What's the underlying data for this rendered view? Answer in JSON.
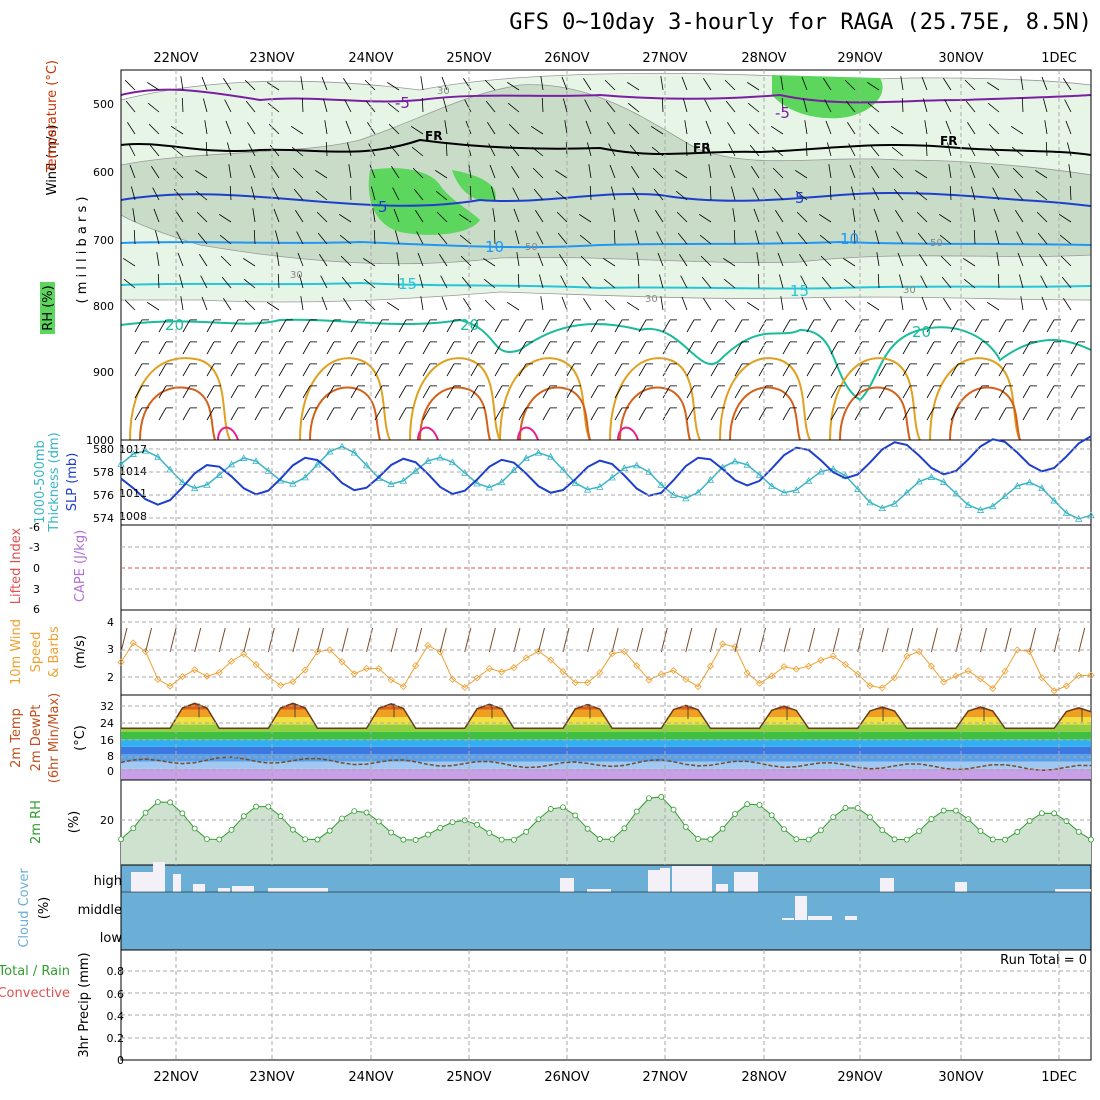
{
  "title": "GFS 0~10day 3-hourly for RAGA (25.75E, 8.5N)",
  "dates": [
    "22NOV",
    "23NOV",
    "24NOV",
    "25NOV",
    "26NOV",
    "27NOV",
    "28NOV",
    "29NOV",
    "30NOV",
    "1DEC"
  ],
  "colors": {
    "temp": "#7b1fa2",
    "freeze": "#000000",
    "rh_green": "#5cd65c",
    "rh_light": "#e6f5e6",
    "rh_mid": "#c8dcc8",
    "thick": "#39b5c6",
    "slp": "#1e3fcc",
    "wind10": "#f0a030",
    "rh2m": "#2e9e2e",
    "cloud": "#6baed6",
    "cape_line": "#e05050"
  },
  "panels": {
    "upper": {
      "ylabel_left_1": "Wind (m/s)",
      "ylabel_left_2": "Temperature (°C)",
      "ylabel_units": "( m i l l i b a r s )",
      "rh_box": "RH (%)",
      "pressure_ticks": [
        "500",
        "600",
        "700",
        "800",
        "900",
        "1000"
      ],
      "contour_labels": {
        "t5a": "-5",
        "t5b": "-5",
        "fr1": "FR",
        "fr2": "FR",
        "fr3": "FR",
        "t5c": "5",
        "t5d": "5",
        "t10a": "10",
        "t10b": "10",
        "t15a": "15",
        "t15b": "15",
        "t20a": "20",
        "t20b": "20",
        "t20c": "20",
        "r30a": "30",
        "r30b": "30",
        "r30c": "30",
        "r30d": "30",
        "r50a": "50",
        "r50b": "50"
      }
    },
    "thick_slp": {
      "label_a": "1000-500mb",
      "label_b": "Thickness (dm)",
      "label_c": "SLP (mb)",
      "left_ticks": [
        "580",
        "578",
        "576",
        "574"
      ],
      "right_ticks": [
        "1017",
        "1014",
        "1011",
        "1008"
      ]
    },
    "cape": {
      "label_a": "Lifted Index",
      "label_b": "CAPE (J/kg)",
      "ticks": [
        "-6",
        "-3",
        "0",
        "3",
        "6"
      ]
    },
    "wind10": {
      "label_a": "10m Wind",
      "label_b": "Speed",
      "label_c": "& Barbs",
      "units": "(m/s)",
      "ticks": [
        "4",
        "3",
        "2"
      ]
    },
    "temp2m": {
      "label_a": "2m Temp",
      "label_b": "2m DewPt",
      "label_c": "(6hr Min/Max)",
      "units": "(°C)",
      "ticks": [
        "32",
        "24",
        "16",
        "8",
        "0"
      ]
    },
    "rh2m": {
      "label": "2m RH",
      "units": "(%)",
      "ticks": [
        "20"
      ]
    },
    "cloud": {
      "label": "Cloud Cover",
      "units": "(%)",
      "levels": [
        "high",
        "middle",
        "low"
      ]
    },
    "precip": {
      "label_a": "Total / Rain",
      "label_b": "Convective",
      "label_c": "3hr Precip (mm)",
      "run_total": "Run Total = 0",
      "ticks": [
        "0.8",
        "0.6",
        "0.4",
        "0.2",
        "0"
      ]
    }
  },
  "chart_data": [
    {
      "type": "line",
      "title": "1000-500mb Thickness (dm)",
      "x": [
        "22NOV",
        "23NOV",
        "24NOV",
        "25NOV",
        "26NOV",
        "27NOV",
        "28NOV",
        "29NOV",
        "30NOV",
        "1DEC"
      ],
      "series": [
        {
          "name": "Thickness (dm)",
          "values": [
            578.6,
            577.4,
            578.8,
            577.6,
            578.2,
            576.5,
            577.6,
            575.8,
            575.6,
            574.6
          ]
        },
        {
          "name": "SLP (mb)",
          "values": [
            1010.5,
            1012.5,
            1013.5,
            1012.8,
            1013.0,
            1012.5,
            1014.5,
            1015.5,
            1016.0,
            1016.5
          ]
        }
      ]
    },
    {
      "type": "line",
      "title": "10m Wind Speed (m/s)",
      "x": [
        "22NOV",
        "23NOV",
        "24NOV",
        "25NOV",
        "26NOV",
        "27NOV",
        "28NOV",
        "29NOV",
        "30NOV",
        "1DEC"
      ],
      "series": [
        {
          "name": "10m Wind Speed",
          "values": [
            2.1,
            2.0,
            2.2,
            2.0,
            2.2,
            2.0,
            2.2,
            2.0,
            2.0,
            1.9
          ]
        }
      ],
      "ylim": [
        1.5,
        4.3
      ]
    },
    {
      "type": "area",
      "title": "2m Temp (°C)",
      "x": [
        "22NOV",
        "23NOV",
        "24NOV",
        "25NOV",
        "26NOV",
        "27NOV",
        "28NOV",
        "29NOV",
        "30NOV",
        "1DEC"
      ],
      "series": [
        {
          "name": "2m Temp max",
          "values": [
            33.5,
            33.5,
            33.5,
            33,
            33,
            32.5,
            32,
            31.5,
            31.5,
            31
          ]
        },
        {
          "name": "2m DewPt",
          "values": [
            1.5,
            3,
            2,
            1,
            0,
            1.5,
            0.5,
            -0.5,
            -1,
            -1.5
          ]
        }
      ]
    },
    {
      "type": "area",
      "title": "2m RH (%)",
      "x": [
        "22NOV",
        "23NOV",
        "24NOV",
        "25NOV",
        "26NOV",
        "27NOV",
        "28NOV",
        "29NOV",
        "30NOV",
        "1DEC"
      ],
      "series": [
        {
          "name": "2m RH",
          "values": [
            30,
            28,
            27,
            22,
            27,
            31,
            28,
            27,
            26,
            25
          ]
        }
      ]
    },
    {
      "type": "bar",
      "title": "3hr Precip (mm)",
      "x": [
        "22NOV",
        "23NOV",
        "24NOV",
        "25NOV",
        "26NOV",
        "27NOV",
        "28NOV",
        "29NOV",
        "30NOV",
        "1DEC"
      ],
      "series": [
        {
          "name": "Total / Rain",
          "values": [
            0,
            0,
            0,
            0,
            0,
            0,
            0,
            0,
            0,
            0
          ]
        }
      ],
      "ylim": [
        0,
        0.9
      ]
    }
  ]
}
